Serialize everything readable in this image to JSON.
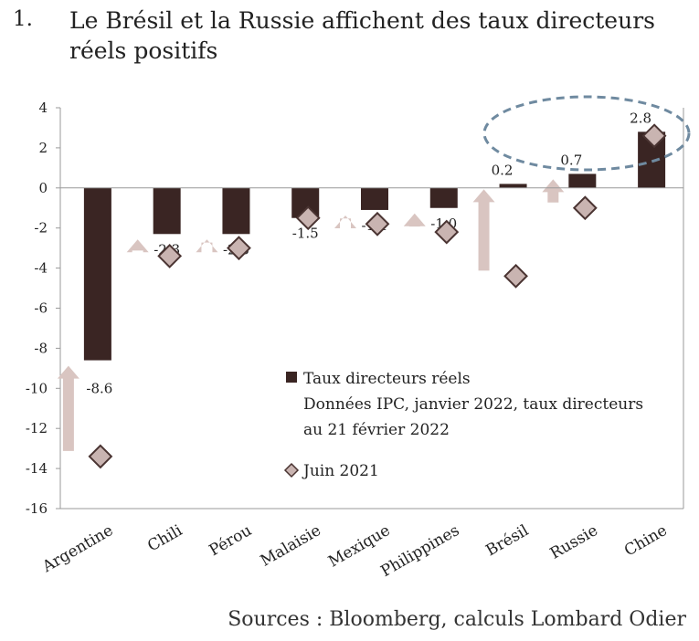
{
  "header": {
    "number": "1.",
    "title": "Le Brésil et la Russie affichent des taux directeurs réels positifs"
  },
  "footer": {
    "source": "Sources : Bloomberg, calculs Lombard Odier"
  },
  "colors": {
    "bar": "#3a2523",
    "diamond_fill": "#c9b4b1",
    "diamond_stroke": "#4a3432",
    "arrow": "#d9c5c1",
    "ellipse": "#6f8aa0",
    "axis": "#999999"
  },
  "chart_data": {
    "type": "bar",
    "categories": [
      "Argentine",
      "Chili",
      "Pérou",
      "Malaisie",
      "Mexique",
      "Philippines",
      "Brésil",
      "Russie",
      "Chine"
    ],
    "series": [
      {
        "name": "Taux directeurs réels",
        "values": [
          -8.6,
          -2.3,
          -2.3,
          -1.5,
          -1.1,
          -1.0,
          0.2,
          0.7,
          2.8
        ]
      },
      {
        "name": "Juin 2021",
        "values": [
          -13.4,
          -3.4,
          -3.0,
          -1.5,
          -1.8,
          -2.2,
          -4.4,
          -1.0,
          2.6
        ]
      }
    ],
    "data_labels": [
      "-8.6",
      "-2.3",
      "-2.3",
      "-1.5",
      "-1.1",
      "-1.0",
      "0.2",
      "0.7",
      "2.8"
    ],
    "ylim": [
      -16,
      4
    ],
    "yticks": [
      "4",
      "2",
      "0",
      "-2",
      "-4",
      "-6",
      "-8",
      "-10",
      "-12",
      "-14",
      "-16"
    ],
    "legend": [
      {
        "label": "Taux directeurs réels",
        "lines": [
          "Taux directeurs réels",
          "Données IPC, janvier 2022, taux directeurs",
          "au 21 février 2022"
        ]
      },
      {
        "label": "Juin 2021",
        "lines": [
          "Juin 2021"
        ]
      }
    ],
    "xlabel": "",
    "ylabel": ""
  }
}
